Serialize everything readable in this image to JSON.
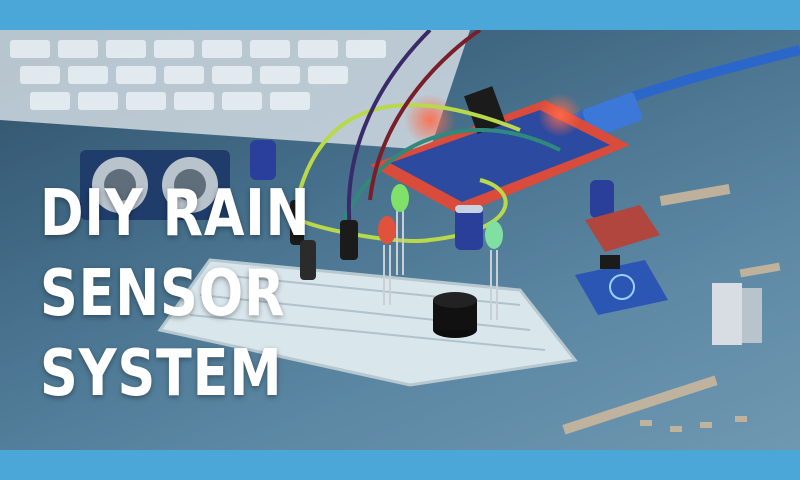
{
  "image": {
    "description_free": true
  },
  "title": {
    "line1": "DIY RAIN",
    "line2": "SENSOR",
    "line3": "SYSTEM"
  },
  "colors": {
    "frame": "#4ba7d7",
    "title_text": "#ffffff",
    "board_red": "#d94b3a",
    "led_green": "#7fe06a",
    "led_red": "#e0523b",
    "capacitor_blue": "#2a3f9a",
    "wire_yellow_green": "#b9d94a"
  }
}
